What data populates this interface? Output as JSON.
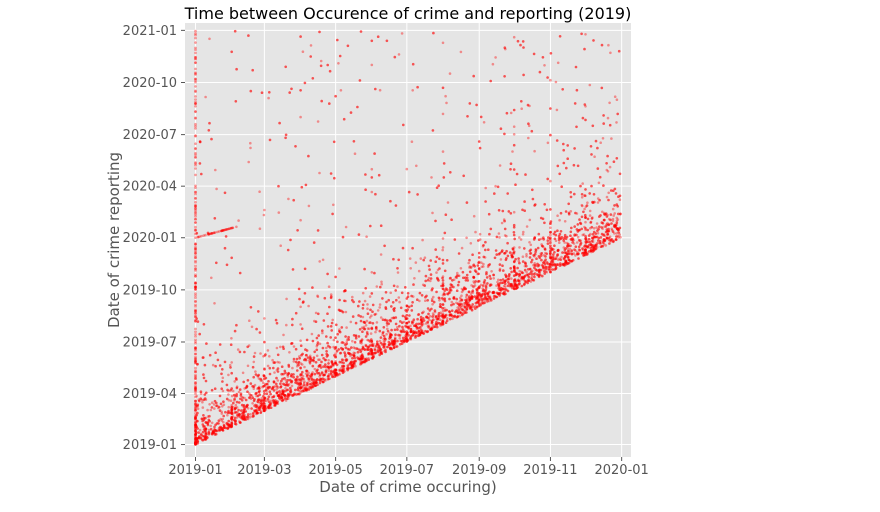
{
  "chart_data": {
    "type": "scatter",
    "title": "Time between Occurence of crime and reporting (2019)",
    "xlabel": "Date of crime occuring)",
    "ylabel": "Date of crime reporting",
    "x_range": [
      "2018-12-23",
      "2020-01-09"
    ],
    "y_range": [
      "2018-12-10",
      "2021-01-14"
    ],
    "x_ticks": [
      "2019-01-01",
      "2019-03-01",
      "2019-05-01",
      "2019-07-01",
      "2019-09-01",
      "2019-11-01",
      "2020-01-01"
    ],
    "x_tick_labels": [
      "2019-01",
      "2019-03",
      "2019-05",
      "2019-07",
      "2019-09",
      "2019-11",
      "2020-01"
    ],
    "y_ticks": [
      "2019-01-01",
      "2019-04-01",
      "2019-07-01",
      "2019-10-01",
      "2020-01-01",
      "2020-04-01",
      "2020-07-01",
      "2020-10-01",
      "2021-01-01"
    ],
    "y_tick_labels": [
      "2019-01",
      "2019-04",
      "2019-07",
      "2019-10",
      "2020-01",
      "2020-04",
      "2020-07",
      "2020-10",
      "2021-01"
    ],
    "grid": true,
    "series": [
      {
        "color": "#ff0000",
        "alpha": 0.4,
        "points": [
          [
            "2019-01-01",
            "2019-01-01"
          ],
          [
            "2019-01-15",
            "2019-01-20"
          ],
          [
            "2019-02-01",
            "2019-02-10"
          ],
          [
            "2019-03-01",
            "2019-03-08"
          ],
          [
            "2019-04-01",
            "2019-04-12"
          ],
          [
            "2019-05-01",
            "2019-05-06"
          ],
          [
            "2019-06-01",
            "2019-06-15"
          ],
          [
            "2019-07-01",
            "2019-07-04"
          ],
          [
            "2019-08-01",
            "2019-08-20"
          ],
          [
            "2019-09-01",
            "2019-09-09"
          ],
          [
            "2019-10-01",
            "2019-10-15"
          ],
          [
            "2019-11-01",
            "2019-11-05"
          ],
          [
            "2019-12-01",
            "2019-12-12"
          ],
          [
            "2019-12-31",
            "2020-01-02"
          ],
          [
            "2019-01-01",
            "2019-03-15"
          ],
          [
            "2019-01-01",
            "2019-06-20"
          ],
          [
            "2019-01-01",
            "2019-09-10"
          ],
          [
            "2019-01-01",
            "2020-01-01"
          ],
          [
            "2019-01-01",
            "2020-03-10"
          ],
          [
            "2019-01-01",
            "2020-06-15"
          ],
          [
            "2019-01-01",
            "2020-09-01"
          ],
          [
            "2019-01-01",
            "2020-12-01"
          ],
          [
            "2019-04-01",
            "2019-08-01"
          ],
          [
            "2019-04-01",
            "2020-02-01"
          ],
          [
            "2019-04-01",
            "2020-08-01"
          ],
          [
            "2019-06-01",
            "2019-11-01"
          ],
          [
            "2019-06-01",
            "2020-05-01"
          ],
          [
            "2019-06-01",
            "2020-11-01"
          ],
          [
            "2019-08-01",
            "2019-12-15"
          ],
          [
            "2019-08-01",
            "2020-06-01"
          ],
          [
            "2019-08-01",
            "2020-12-10"
          ],
          [
            "2019-10-01",
            "2020-02-15"
          ],
          [
            "2019-10-01",
            "2020-07-15"
          ],
          [
            "2019-10-01",
            "2020-12-20"
          ],
          [
            "2019-11-01",
            "2020-04-10"
          ],
          [
            "2019-11-01",
            "2020-10-05"
          ],
          [
            "2019-12-01",
            "2020-03-15"
          ],
          [
            "2019-12-01",
            "2020-08-20"
          ],
          [
            "2019-12-01",
            "2020-12-25"
          ],
          [
            "2019-02-15",
            "2019-05-20"
          ],
          [
            "2019-03-20",
            "2019-09-15"
          ],
          [
            "2019-05-10",
            "2020-01-20"
          ],
          [
            "2019-07-15",
            "2019-10-10"
          ],
          [
            "2019-09-15",
            "2020-04-01"
          ],
          [
            "2019-12-20",
            "2020-02-10"
          ]
        ]
      }
    ]
  }
}
